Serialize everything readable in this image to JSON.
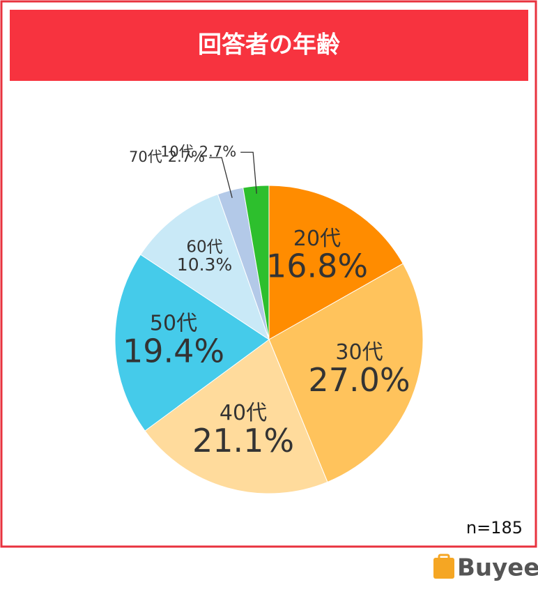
{
  "chart_data": {
    "type": "pie",
    "title": "回答者の年齢",
    "categories": [
      "20代",
      "30代",
      "40代",
      "50代",
      "60代",
      "70代",
      "10代"
    ],
    "values": [
      16.8,
      27.0,
      21.1,
      19.4,
      10.3,
      2.7,
      2.7
    ],
    "value_labels": [
      "16.8%",
      "27.0%",
      "21.1%",
      "19.4%",
      "10.3%",
      "2.7%",
      "2.7%"
    ],
    "colors": [
      "#ff8c00",
      "#ffc35c",
      "#ffdb9c",
      "#45cbea",
      "#c9e9f7",
      "#b3c9e8",
      "#2dbf2d"
    ],
    "note": "n=185"
  },
  "brand": "Buyee"
}
